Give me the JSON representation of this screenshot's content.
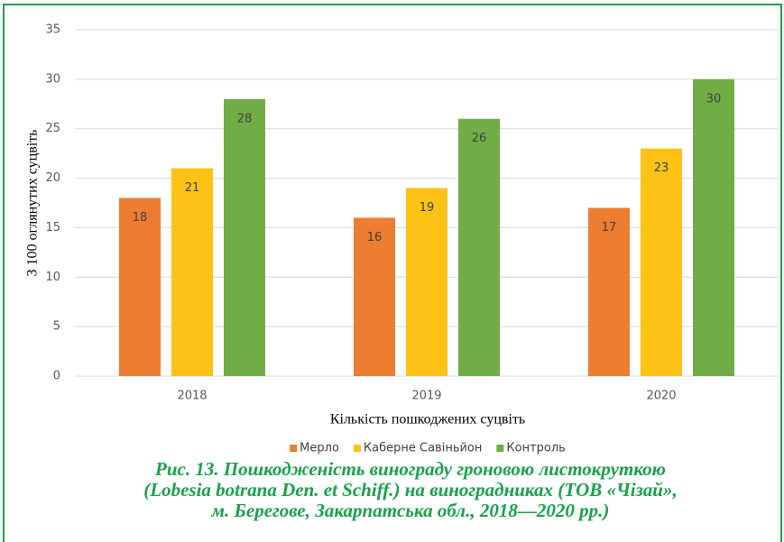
{
  "chart_data": {
    "type": "bar",
    "categories": [
      "2018",
      "2019",
      "2020"
    ],
    "series": [
      {
        "name": "Мерло",
        "color": "#ed7d31",
        "values": [
          18,
          16,
          17
        ]
      },
      {
        "name": "Каберне Савіньйон",
        "color": "#fcc216",
        "values": [
          21,
          19,
          23
        ]
      },
      {
        "name": "Контроль",
        "color": "#70ad47",
        "values": [
          28,
          26,
          30
        ]
      }
    ],
    "ylim": [
      0,
      35
    ],
    "yticks": [
      0,
      5,
      10,
      15,
      20,
      25,
      30,
      35
    ],
    "grid": true,
    "ylabel": "З 100 оглянутих суцвіть",
    "xlabel": "Кількість пошкоджених суцвіть",
    "legend": "bottom",
    "caption": [
      "Рис. 13. Пошкодженість винограду гроновою листокруткою",
      "(Lobesia botrana Den. et Schiff.) на виноградниках (ТОВ «Чізай»,",
      "м. Берегове, Закарпатська обл., 2018—2020 рр.)"
    ]
  }
}
